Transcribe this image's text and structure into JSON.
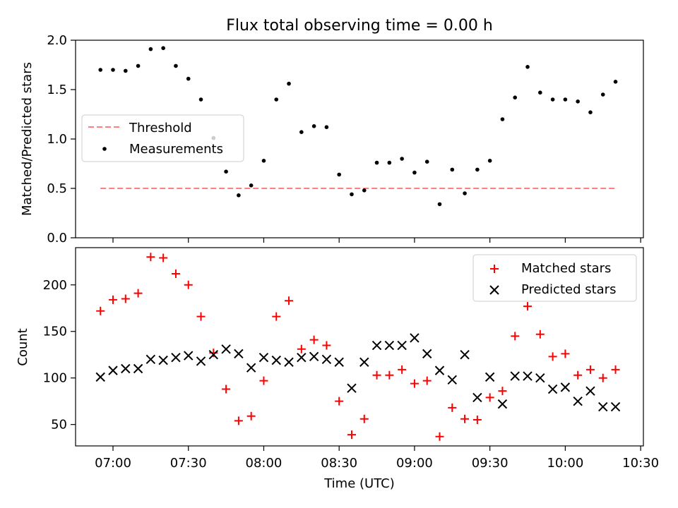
{
  "figure": {
    "title": "Flux total observing time = 0.00 h",
    "xlabel": "Time (UTC)",
    "x_ticks": [
      "07:00",
      "07:30",
      "08:00",
      "08:30",
      "09:00",
      "09:30",
      "10:00",
      "10:30"
    ]
  },
  "chart_data": [
    {
      "type": "scatter",
      "title": "Flux total observing time = 0.00 h",
      "xlabel": "",
      "ylabel": "Matched/Predicted stars",
      "x_unit": "minutes after 07:00 UTC",
      "x_labels": [
        "06:55",
        "07:00",
        "07:05",
        "07:10",
        "07:15",
        "07:20",
        "07:25",
        "07:30",
        "07:35",
        "07:40",
        "07:45",
        "07:50",
        "07:55",
        "08:00",
        "08:05",
        "08:10",
        "08:15",
        "08:20",
        "08:25",
        "08:30",
        "08:35",
        "08:40",
        "08:45",
        "08:50",
        "08:55",
        "09:00",
        "09:05",
        "09:10",
        "09:15",
        "09:20",
        "09:25",
        "09:30",
        "09:35",
        "09:40",
        "09:45",
        "09:50",
        "09:55",
        "10:00",
        "10:05",
        "10:10",
        "10:15",
        "10:20"
      ],
      "ylim": [
        0,
        2
      ],
      "y_ticks": [
        "0.0",
        "0.5",
        "1.0",
        "1.5",
        "2.0"
      ],
      "legend_position": "center-left",
      "series": [
        {
          "name": "Threshold",
          "style": "dashed-line",
          "color": "#ff7f7f",
          "x": [
            -5,
            200
          ],
          "y": [
            0.5,
            0.5
          ]
        },
        {
          "name": "Measurements",
          "style": "dot",
          "color": "#000000",
          "x": [
            -5,
            0,
            5,
            10,
            15,
            20,
            25,
            30,
            35,
            40,
            45,
            50,
            55,
            60,
            65,
            70,
            75,
            80,
            85,
            90,
            95,
            100,
            105,
            110,
            115,
            120,
            125,
            130,
            135,
            140,
            145,
            150,
            155,
            160,
            165,
            170,
            175,
            180,
            185,
            190,
            195,
            200
          ],
          "y": [
            1.7,
            1.7,
            1.69,
            1.74,
            1.91,
            1.92,
            1.74,
            1.61,
            1.4,
            1.01,
            0.67,
            0.43,
            0.53,
            0.78,
            1.4,
            1.56,
            1.07,
            1.13,
            1.12,
            0.64,
            0.44,
            0.48,
            0.76,
            0.76,
            0.8,
            0.66,
            0.77,
            0.34,
            0.69,
            0.45,
            0.69,
            0.78,
            1.2,
            1.42,
            1.73,
            1.47,
            1.4,
            1.4,
            1.38,
            1.27,
            1.45,
            1.58
          ]
        }
      ]
    },
    {
      "type": "scatter",
      "xlabel": "Time (UTC)",
      "ylabel": "Count",
      "x_unit": "minutes after 07:00 UTC",
      "ylim": [
        27,
        240
      ],
      "y_ticks": [
        "50",
        "100",
        "150",
        "200"
      ],
      "legend_position": "top-right",
      "series": [
        {
          "name": "Matched stars",
          "style": "plus",
          "color": "#ff0000",
          "x": [
            -5,
            0,
            5,
            10,
            15,
            20,
            25,
            30,
            35,
            40,
            45,
            50,
            55,
            60,
            65,
            70,
            75,
            80,
            85,
            90,
            95,
            100,
            105,
            110,
            115,
            120,
            125,
            130,
            135,
            140,
            145,
            150,
            155,
            160,
            165,
            170,
            175,
            180,
            185,
            190,
            195,
            200
          ],
          "y": [
            172,
            184,
            185,
            191,
            230,
            229,
            212,
            200,
            166,
            127,
            88,
            54,
            59,
            97,
            166,
            183,
            131,
            141,
            135,
            75,
            39,
            56,
            103,
            103,
            109,
            94,
            97,
            37,
            68,
            56,
            55,
            79,
            86,
            145,
            177,
            147,
            123,
            126,
            103,
            109,
            100,
            109
          ]
        },
        {
          "name": "Predicted stars",
          "style": "x",
          "color": "#000000",
          "x": [
            -5,
            0,
            5,
            10,
            15,
            20,
            25,
            30,
            35,
            40,
            45,
            50,
            55,
            60,
            65,
            70,
            75,
            80,
            85,
            90,
            95,
            100,
            105,
            110,
            115,
            120,
            125,
            130,
            135,
            140,
            145,
            150,
            155,
            160,
            165,
            170,
            175,
            180,
            185,
            190,
            195,
            200
          ],
          "y": [
            101,
            108,
            110,
            110,
            120,
            119,
            122,
            124,
            118,
            125,
            131,
            126,
            111,
            122,
            119,
            117,
            122,
            123,
            120,
            117,
            89,
            117,
            135,
            135,
            135,
            143,
            126,
            108,
            98,
            125,
            79,
            101,
            72,
            102,
            102,
            100,
            88,
            90,
            75,
            86,
            69,
            69
          ]
        }
      ]
    }
  ]
}
